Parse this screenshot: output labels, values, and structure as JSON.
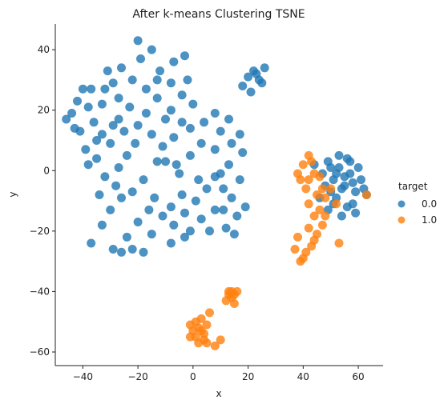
{
  "chart_data": {
    "type": "scatter",
    "title": "After k-means Clustering TSNE",
    "xlabel": "x",
    "ylabel": "y",
    "xlim": [
      -50,
      69
    ],
    "ylim": [
      -64.5,
      48.5
    ],
    "xticks": [
      -40,
      -20,
      0,
      20,
      40,
      60
    ],
    "yticks": [
      -60,
      -40,
      -20,
      0,
      20,
      40
    ],
    "grid": false,
    "legend": {
      "title": "target",
      "placement": "right-outside",
      "entries": [
        "0.0",
        "1.0"
      ]
    },
    "series": [
      {
        "name": "0.0",
        "color": "#1f77b4",
        "points": [
          [
            -44,
            19
          ],
          [
            -42,
            23
          ],
          [
            -40,
            27
          ],
          [
            -38,
            21
          ],
          [
            -41,
            13
          ],
          [
            -36,
            16
          ],
          [
            -33,
            12
          ],
          [
            -30,
            9
          ],
          [
            -35,
            4
          ],
          [
            -38,
            2
          ],
          [
            -32,
            -2
          ],
          [
            -27,
            1
          ],
          [
            -24,
            5
          ],
          [
            -28,
            -5
          ],
          [
            -22,
            -7
          ],
          [
            -26,
            -9
          ],
          [
            -30,
            -13
          ],
          [
            -33,
            -18
          ],
          [
            -37,
            -24
          ],
          [
            -29,
            -26
          ],
          [
            -24,
            -22
          ],
          [
            -20,
            -17
          ],
          [
            -15,
            -21
          ],
          [
            -11,
            -15
          ],
          [
            -18,
            -27
          ],
          [
            -22,
            -26
          ],
          [
            -26,
            -27
          ],
          [
            -27,
            17
          ],
          [
            -23,
            21
          ],
          [
            -20,
            15
          ],
          [
            -17,
            19
          ],
          [
            -25,
            13
          ],
          [
            -21,
            9
          ],
          [
            -15,
            12
          ],
          [
            -11,
            8
          ],
          [
            -7,
            11
          ],
          [
            -4,
            16
          ],
          [
            -8,
            20
          ],
          [
            -13,
            24
          ],
          [
            -17,
            27
          ],
          [
            -22,
            30
          ],
          [
            -26,
            34
          ],
          [
            -19,
            37
          ],
          [
            -15,
            40
          ],
          [
            -20,
            43
          ],
          [
            -12,
            33
          ],
          [
            -8,
            29
          ],
          [
            -4,
            25
          ],
          [
            -2,
            30
          ],
          [
            -7,
            36
          ],
          [
            -3,
            38
          ],
          [
            -13,
            30
          ],
          [
            -10,
            3
          ],
          [
            -5,
            -1
          ],
          [
            -1,
            5
          ],
          [
            2,
            -3
          ],
          [
            -4,
            -8
          ],
          [
            -8,
            -12
          ],
          [
            -3,
            -14
          ],
          [
            1,
            -10
          ],
          [
            3,
            -16
          ],
          [
            -1,
            -20
          ],
          [
            -7,
            -18
          ],
          [
            5,
            -6
          ],
          [
            8,
            -2
          ],
          [
            11,
            -6
          ],
          [
            14,
            -9
          ],
          [
            17,
            -3
          ],
          [
            16,
            -15
          ],
          [
            12,
            -19
          ],
          [
            8,
            -13
          ],
          [
            10,
            -1
          ],
          [
            13,
            2
          ],
          [
            18,
            6
          ],
          [
            14,
            9
          ],
          [
            8,
            7
          ],
          [
            3,
            9
          ],
          [
            -1,
            14
          ],
          [
            4,
            16
          ],
          [
            8,
            19
          ],
          [
            13,
            17
          ],
          [
            17,
            12
          ],
          [
            10,
            13
          ],
          [
            -33,
            22
          ],
          [
            -37,
            27
          ],
          [
            -29,
            29
          ],
          [
            -31,
            33
          ],
          [
            -35,
            10
          ],
          [
            -18,
            -3
          ],
          [
            -14,
            -9
          ],
          [
            -13,
            3
          ],
          [
            -34,
            -8
          ],
          [
            -16,
            -13
          ],
          [
            -8,
            -24
          ],
          [
            -3,
            -22
          ],
          [
            6,
            -20
          ],
          [
            11,
            -13
          ],
          [
            15,
            -21
          ],
          [
            19,
            -12
          ],
          [
            -6,
            2
          ],
          [
            -29,
            15
          ],
          [
            -27,
            24
          ],
          [
            -10,
            17
          ],
          [
            0,
            22
          ],
          [
            -46,
            17
          ],
          [
            -43,
            14
          ],
          [
            -39,
            7
          ],
          [
            -32,
            27
          ],
          [
            18,
            28
          ],
          [
            20,
            31
          ],
          [
            22,
            33
          ],
          [
            24,
            30
          ],
          [
            26,
            34
          ],
          [
            21,
            26
          ],
          [
            23,
            32
          ],
          [
            25,
            29
          ],
          [
            47,
            -1
          ],
          [
            49,
            3
          ],
          [
            51,
            -3
          ],
          [
            53,
            1
          ],
          [
            55,
            -5
          ],
          [
            57,
            -1
          ],
          [
            59,
            -7
          ],
          [
            61,
            -3
          ],
          [
            63,
            -8
          ],
          [
            52,
            -9
          ],
          [
            56,
            -12
          ],
          [
            50,
            -7
          ],
          [
            54,
            -15
          ],
          [
            58,
            -11
          ],
          [
            48,
            -5
          ],
          [
            60,
            1
          ],
          [
            53,
            5
          ],
          [
            57,
            3
          ],
          [
            46,
            -9
          ],
          [
            62,
            -6
          ],
          [
            51,
            -11
          ],
          [
            55,
            -2
          ],
          [
            49,
            -13
          ],
          [
            59,
            -14
          ],
          [
            54,
            -6
          ],
          [
            52,
            -1
          ],
          [
            58,
            -4
          ],
          [
            56,
            4
          ],
          [
            50,
            1
          ],
          [
            44,
            2
          ]
        ]
      },
      {
        "name": "1.0",
        "color": "#ff7f0e",
        "points": [
          [
            40,
            2
          ],
          [
            42,
            5
          ],
          [
            44,
            -1
          ],
          [
            39,
            -3
          ],
          [
            43,
            3
          ],
          [
            46,
            -2
          ],
          [
            41,
            -6
          ],
          [
            45,
            -8
          ],
          [
            42,
            -11
          ],
          [
            44,
            -15
          ],
          [
            46,
            -13
          ],
          [
            48,
            -9
          ],
          [
            50,
            -6
          ],
          [
            52,
            -11
          ],
          [
            47,
            -18
          ],
          [
            45,
            -21
          ],
          [
            43,
            -25
          ],
          [
            41,
            -27
          ],
          [
            39,
            -30
          ],
          [
            38,
            -22
          ],
          [
            42,
            -19
          ],
          [
            48,
            -15
          ],
          [
            53,
            -24
          ],
          [
            37,
            -26
          ],
          [
            40,
            -29
          ],
          [
            44,
            -23
          ],
          [
            47,
            -6
          ],
          [
            63,
            -8
          ],
          [
            38,
            -1
          ],
          [
            42,
            -3
          ],
          [
            -1,
            -51
          ],
          [
            0,
            -53
          ],
          [
            1,
            -55
          ],
          [
            2,
            -57
          ],
          [
            4,
            -54
          ],
          [
            5,
            -51
          ],
          [
            3,
            -49
          ],
          [
            6,
            -47
          ],
          [
            2,
            -52
          ],
          [
            4,
            -56
          ],
          [
            1,
            -50
          ],
          [
            -1,
            -55
          ],
          [
            3,
            -53
          ],
          [
            5,
            -57
          ],
          [
            8,
            -58
          ],
          [
            10,
            -56
          ],
          [
            13,
            -40
          ],
          [
            14,
            -42
          ],
          [
            15,
            -41
          ],
          [
            16,
            -40
          ],
          [
            12,
            -43
          ],
          [
            13,
            -41
          ],
          [
            15,
            -44
          ],
          [
            14,
            -40
          ]
        ]
      }
    ]
  }
}
